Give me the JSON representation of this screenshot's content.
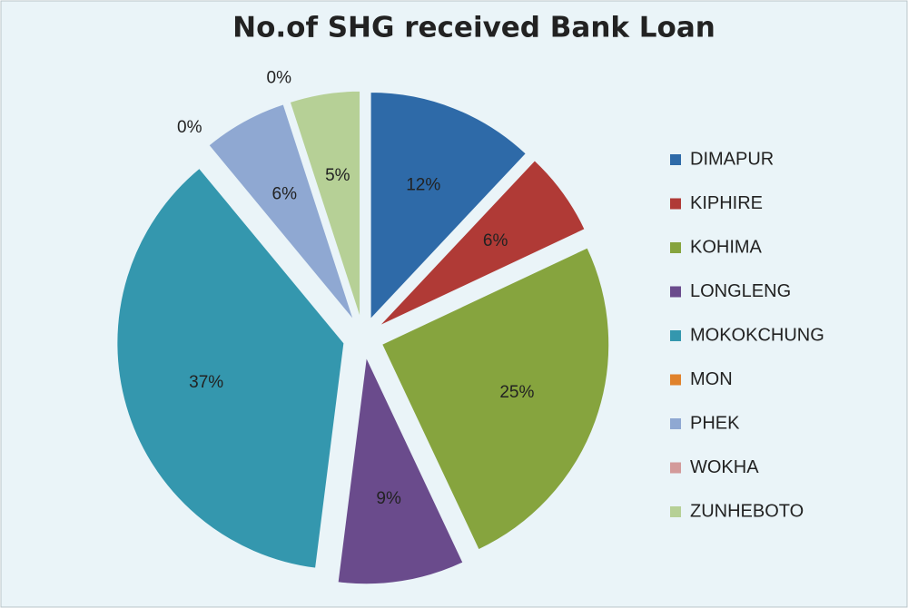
{
  "chart_data": {
    "type": "pie",
    "title": "No.of SHG received Bank Loan",
    "categories": [
      "DIMAPUR",
      "KIPHIRE",
      "KOHIMA",
      "LONGLENG",
      "MOKOKCHUNG",
      "MON",
      "PHEK",
      "WOKHA",
      "ZUNHEBOTO"
    ],
    "values": [
      12,
      6,
      25,
      9,
      37,
      0,
      6,
      0,
      5
    ],
    "value_labels": [
      "12%",
      "6%",
      "25%",
      "9%",
      "37%",
      "0%",
      "6%",
      "0%",
      "5%"
    ],
    "colors": [
      "#2e6aa8",
      "#b03a36",
      "#86a43e",
      "#6a4b8c",
      "#3497ae",
      "#e0822c",
      "#8fa8d2",
      "#d39a9a",
      "#b6d096"
    ],
    "exploded": true,
    "legend": "right"
  }
}
